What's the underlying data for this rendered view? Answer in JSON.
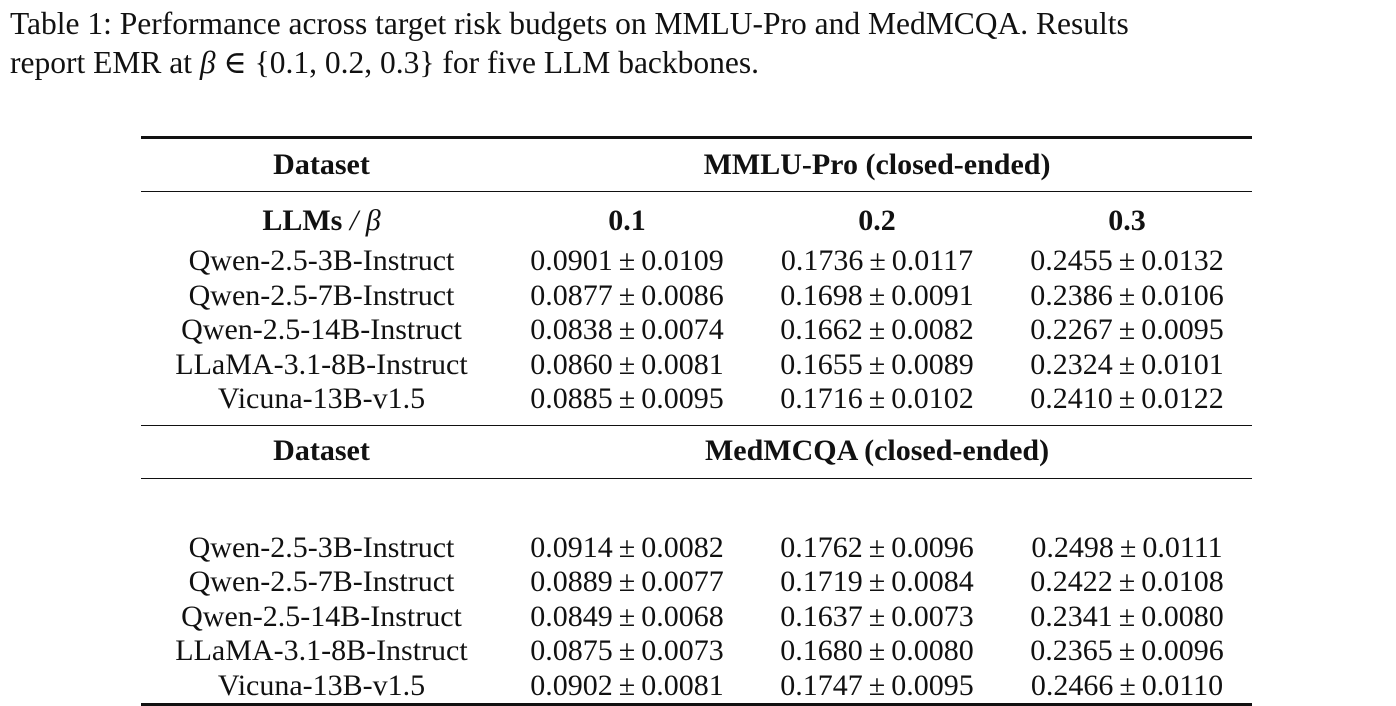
{
  "caption": {
    "line1": "Table 1: Performance across target risk budgets on MMLU-Pro and MedMCQA. Results",
    "line2_prefix": "report EMR at ",
    "beta_symbol": "β",
    "in_symbol": "∈",
    "set": "{0.1, 0.2, 0.3}",
    "line2_suffix": " for five LLM backbones."
  },
  "table": {
    "dataset_label": "Dataset",
    "llms_label": "LLMs",
    "slash": "/",
    "beta": "β",
    "columns": [
      "0.1",
      "0.2",
      "0.3"
    ],
    "pm": "±",
    "sections": [
      {
        "name": "MMLU-Pro (closed-ended)",
        "rows": [
          {
            "model": "Qwen-2.5-3B-Instruct",
            "cells": [
              {
                "mean": "0.0901",
                "std": "0.0109"
              },
              {
                "mean": "0.1736",
                "std": "0.0117"
              },
              {
                "mean": "0.2455",
                "std": "0.0132"
              }
            ]
          },
          {
            "model": "Qwen-2.5-7B-Instruct",
            "cells": [
              {
                "mean": "0.0877",
                "std": "0.0086"
              },
              {
                "mean": "0.1698",
                "std": "0.0091"
              },
              {
                "mean": "0.2386",
                "std": "0.0106"
              }
            ]
          },
          {
            "model": "Qwen-2.5-14B-Instruct",
            "cells": [
              {
                "mean": "0.0838",
                "std": "0.0074"
              },
              {
                "mean": "0.1662",
                "std": "0.0082"
              },
              {
                "mean": "0.2267",
                "std": "0.0095"
              }
            ]
          },
          {
            "model": "LLaMA-3.1-8B-Instruct",
            "cells": [
              {
                "mean": "0.0860",
                "std": "0.0081"
              },
              {
                "mean": "0.1655",
                "std": "0.0089"
              },
              {
                "mean": "0.2324",
                "std": "0.0101"
              }
            ]
          },
          {
            "model": "Vicuna-13B-v1.5",
            "cells": [
              {
                "mean": "0.0885",
                "std": "0.0095"
              },
              {
                "mean": "0.1716",
                "std": "0.0102"
              },
              {
                "mean": "0.2410",
                "std": "0.0122"
              }
            ]
          }
        ]
      },
      {
        "name": "MedMCQA (closed-ended)",
        "rows": [
          {
            "model": "Qwen-2.5-3B-Instruct",
            "cells": [
              {
                "mean": "0.0914",
                "std": "0.0082"
              },
              {
                "mean": "0.1762",
                "std": "0.0096"
              },
              {
                "mean": "0.2498",
                "std": "0.0111"
              }
            ]
          },
          {
            "model": "Qwen-2.5-7B-Instruct",
            "cells": [
              {
                "mean": "0.0889",
                "std": "0.0077"
              },
              {
                "mean": "0.1719",
                "std": "0.0084"
              },
              {
                "mean": "0.2422",
                "std": "0.0108"
              }
            ]
          },
          {
            "model": "Qwen-2.5-14B-Instruct",
            "cells": [
              {
                "mean": "0.0849",
                "std": "0.0068"
              },
              {
                "mean": "0.1637",
                "std": "0.0073"
              },
              {
                "mean": "0.2341",
                "std": "0.0080"
              }
            ]
          },
          {
            "model": "LLaMA-3.1-8B-Instruct",
            "cells": [
              {
                "mean": "0.0875",
                "std": "0.0073"
              },
              {
                "mean": "0.1680",
                "std": "0.0080"
              },
              {
                "mean": "0.2365",
                "std": "0.0096"
              }
            ]
          },
          {
            "model": "Vicuna-13B-v1.5",
            "cells": [
              {
                "mean": "0.0902",
                "std": "0.0081"
              },
              {
                "mean": "0.1747",
                "std": "0.0095"
              },
              {
                "mean": "0.2466",
                "std": "0.0110"
              }
            ]
          }
        ]
      }
    ]
  }
}
